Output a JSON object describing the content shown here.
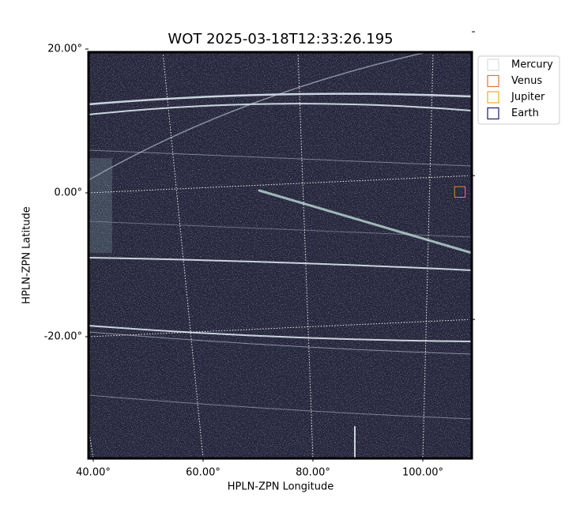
{
  "chart_data": {
    "type": "image",
    "title": "WOT 2025-03-18T12:33:26.195",
    "xlabel": "HPLN-ZPN Longitude",
    "ylabel": "HPLN-ZPN Latitude",
    "xlim": [
      40,
      110
    ],
    "ylim": [
      -37,
      20.5
    ],
    "xticks": [
      {
        "value": 40,
        "label": "40.00°"
      },
      {
        "value": 60,
        "label": "60.00°"
      },
      {
        "value": 80,
        "label": "80.00°"
      },
      {
        "value": 100,
        "label": "100.00°"
      }
    ],
    "yticks": [
      {
        "value": 20,
        "label": "20.00°"
      },
      {
        "value": 0,
        "label": "0.00°"
      },
      {
        "value": -20,
        "label": "-20.00°"
      }
    ],
    "grid": true,
    "legend": "upper right outside",
    "series": [
      {
        "name": "Mercury",
        "color": "#dddddd",
        "x": [],
        "y": []
      },
      {
        "name": "Venus",
        "color": "#e0763a",
        "x": [
          104.8
        ],
        "y": [
          -2.2
        ]
      },
      {
        "name": "Jupiter",
        "color": "#e8b020",
        "x": [
          104.8
        ],
        "y": [
          -2.2
        ]
      },
      {
        "name": "Earth",
        "color": "#1a1a70",
        "x": [
          104.8
        ],
        "y": [
          -2.2
        ]
      }
    ]
  }
}
